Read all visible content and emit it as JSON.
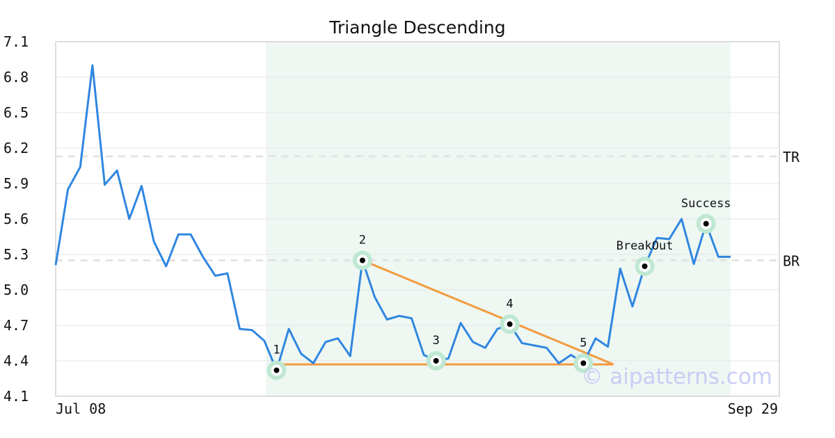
{
  "chart_data": {
    "type": "line",
    "title": "Triangle Descending",
    "xlabel": "",
    "ylabel": "",
    "ylim": [
      4.1,
      7.1
    ],
    "yticks": [
      4.1,
      4.4,
      4.7,
      5.0,
      5.3,
      5.6,
      5.9,
      6.2,
      6.5,
      6.8,
      7.1
    ],
    "grid": true,
    "x_start_label": "Jul 08",
    "x_end_label": "Sep 29",
    "series": [
      {
        "color": "#2f86e0",
        "values": [
          5.21,
          5.85,
          6.04,
          6.9,
          5.89,
          6.01,
          5.6,
          5.88,
          5.41,
          5.2,
          5.47,
          5.47,
          5.28,
          5.12,
          5.14,
          4.67,
          4.66,
          4.57,
          4.32,
          4.67,
          4.46,
          4.38,
          4.56,
          4.59,
          4.44,
          5.25,
          4.94,
          4.75,
          4.78,
          4.76,
          4.45,
          4.4,
          4.42,
          4.72,
          4.56,
          4.51,
          4.67,
          4.71,
          4.55,
          4.53,
          4.51,
          4.38,
          4.45,
          4.38,
          4.59,
          4.52,
          5.18,
          4.86,
          5.2,
          5.44,
          5.43,
          5.6,
          5.22,
          5.56,
          5.28,
          5.28
        ]
      }
    ],
    "pattern_region": {
      "start_index": 16,
      "end_index": 55,
      "color": "#eef7f2"
    },
    "levels": [
      {
        "label": "TR",
        "value": 6.13,
        "color": "#e4e4e4"
      },
      {
        "label": "BR",
        "value": 5.25,
        "color": "#e4e4e4"
      }
    ],
    "trendlines": [
      {
        "color": "#f39a3f",
        "from": {
          "index": 18,
          "value": 4.37
        },
        "to": {
          "index": 45,
          "value": 4.37
        }
      },
      {
        "color": "#f39a3f",
        "from": {
          "index": 25,
          "value": 5.25
        },
        "to": {
          "index": 45,
          "value": 4.37
        }
      }
    ],
    "points": [
      {
        "label": "1",
        "index": 18,
        "value": 4.32
      },
      {
        "label": "2",
        "index": 25,
        "value": 5.25
      },
      {
        "label": "3",
        "index": 31,
        "value": 4.4
      },
      {
        "label": "4",
        "index": 37,
        "value": 4.71
      },
      {
        "label": "5",
        "index": 43,
        "value": 4.38
      },
      {
        "label": "BreakOut",
        "index": 48,
        "value": 5.2
      },
      {
        "label": "Success",
        "index": 53,
        "value": 5.56
      }
    ],
    "watermark": "© aipatterns.com"
  }
}
